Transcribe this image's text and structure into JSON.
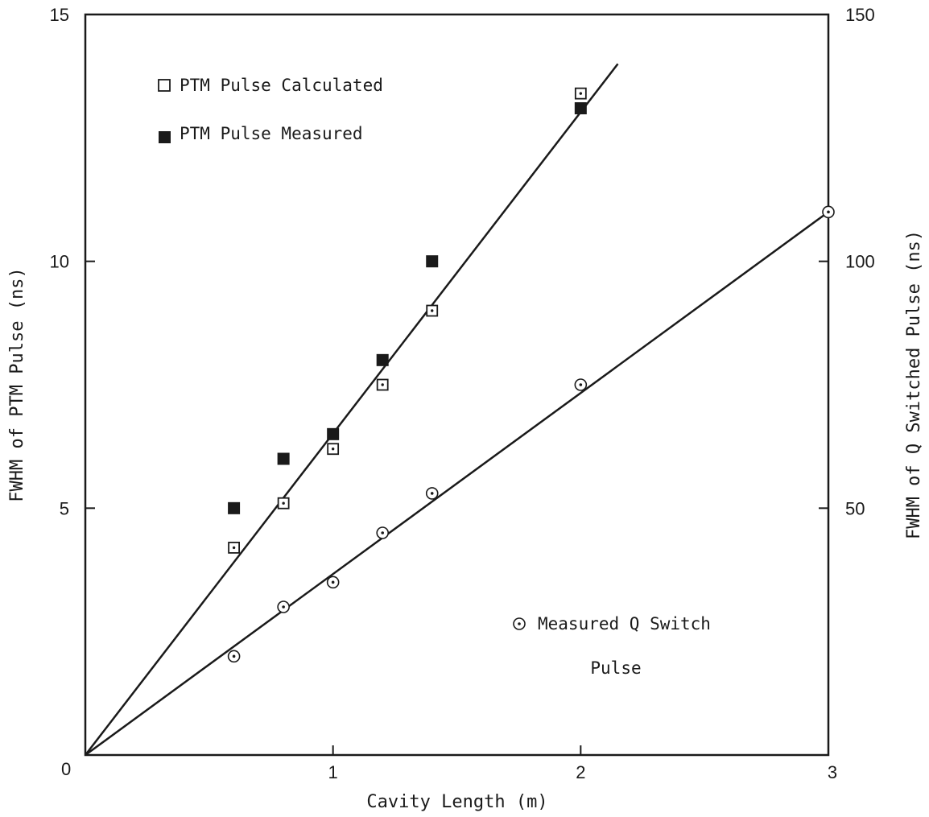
{
  "chart_data": {
    "type": "scatter",
    "xlabel": "Cavity Length (m)",
    "ylabel_left": "FWHM of PTM Pulse (ns)",
    "ylabel_right": "FWHM of Q Switched Pulse (ns)",
    "xlim": [
      0,
      3
    ],
    "ylim_left": [
      0,
      15
    ],
    "ylim_right": [
      0,
      150
    ],
    "x_ticks": [
      0,
      1,
      2,
      3
    ],
    "x_tick_labels": [
      "",
      "1",
      "2",
      "3"
    ],
    "y_left_ticks": [
      5,
      10,
      15
    ],
    "y_left_tick_labels": [
      "5",
      "10",
      "15"
    ],
    "y_right_ticks": [
      50,
      100,
      150
    ],
    "y_right_tick_labels": [
      "50",
      "100",
      "150"
    ],
    "origin_label": "0",
    "grid": false,
    "legend_position": "top-left",
    "series": [
      {
        "name": "PTM Pulse Calculated",
        "marker": "open-square-dot",
        "axis": "left",
        "x": [
          0.6,
          0.8,
          1.0,
          1.2,
          1.4,
          2.0
        ],
        "y": [
          4.2,
          5.1,
          6.2,
          7.5,
          9.0,
          13.4
        ]
      },
      {
        "name": "PTM Pulse Measured",
        "marker": "filled-square",
        "axis": "left",
        "x": [
          0.6,
          0.8,
          1.0,
          1.2,
          1.4,
          2.0
        ],
        "y": [
          5.0,
          6.0,
          6.5,
          8.0,
          10.0,
          13.1
        ]
      },
      {
        "name": "Measured Q Switch Pulse",
        "marker": "open-circle-dot",
        "axis": "right",
        "x": [
          0.6,
          0.8,
          1.0,
          1.2,
          1.4,
          2.0,
          3.0
        ],
        "y": [
          20,
          30,
          35,
          45,
          53,
          75,
          110
        ]
      }
    ],
    "fit_lines": [
      {
        "axis": "left",
        "x": [
          0,
          2.15
        ],
        "y": [
          0,
          14.0
        ]
      },
      {
        "axis": "right",
        "x": [
          0,
          3.0
        ],
        "y": [
          0,
          110
        ]
      }
    ],
    "legend_lines": [
      "PTM Pulse Calculated",
      "PTM Pulse Measured"
    ],
    "annotation_lines": [
      "Measured Q Switch",
      "Pulse"
    ],
    "colors": {
      "ink": "#1a1a1a",
      "background": "#ffffff"
    }
  }
}
